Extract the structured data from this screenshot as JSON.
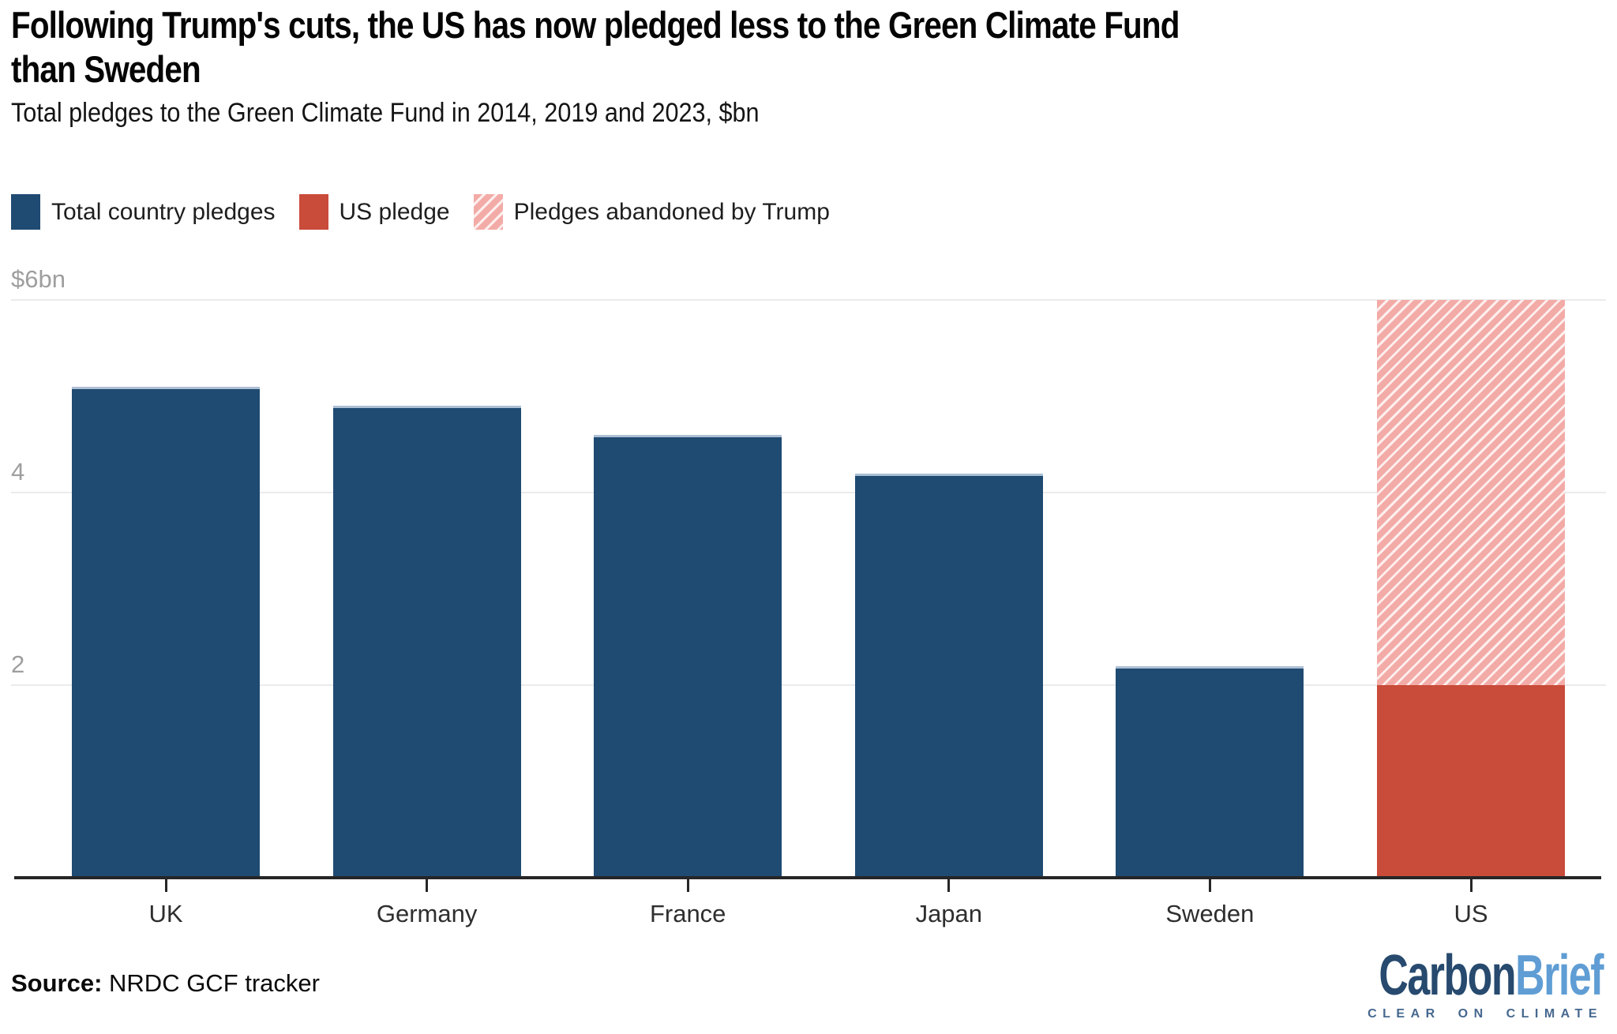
{
  "header": {
    "title": "Following Trump's cuts, the US has now pledged less to the Green Climate Fund than Sweden",
    "title_lines": [
      "Following Trump's cuts, the US has now pledged less to the Green Climate Fund",
      "than Sweden"
    ],
    "subtitle": "Total pledges to the Green Climate Fund in 2014, 2019 and 2023, $bn"
  },
  "legend": {
    "items": [
      {
        "label": "Total country pledges",
        "color": "#1f4a72",
        "pattern": "solid"
      },
      {
        "label": "US pledge",
        "color": "#c94b3a",
        "pattern": "solid"
      },
      {
        "label": "Pledges abandoned by Trump",
        "color": "#f3aba7",
        "pattern": "hatched"
      }
    ]
  },
  "chart_data": {
    "type": "bar",
    "title": "Following Trump's cuts, the US has now pledged less to the Green Climate Fund than Sweden",
    "subtitle": "Total pledges to the Green Climate Fund in 2014, 2019 and 2023, $bn",
    "unit": "$bn",
    "categories": [
      "UK",
      "Germany",
      "France",
      "Japan",
      "Sweden",
      "US"
    ],
    "series": [
      {
        "name": "Total country pledges",
        "color": "#1f4a72",
        "hatch": false,
        "top_edge": true,
        "values": [
          5.1,
          4.9,
          4.6,
          4.2,
          2.2,
          null
        ]
      },
      {
        "name": "US pledge",
        "color": "#c94b3a",
        "hatch": false,
        "top_edge": false,
        "values": [
          null,
          null,
          null,
          null,
          null,
          2.0
        ]
      },
      {
        "name": "Pledges abandoned by Trump",
        "color": "#f3aba7",
        "hatch": true,
        "top_edge": false,
        "values": [
          null,
          null,
          null,
          null,
          null,
          4.0
        ]
      }
    ],
    "stacked": true,
    "ylim": [
      0,
      6
    ],
    "yticks": [
      {
        "value": 6,
        "label": "$6bn"
      },
      {
        "value": 4,
        "label": "4"
      },
      {
        "value": 2,
        "label": "2"
      }
    ],
    "grid": "horizontal",
    "legend_position": "top",
    "colors": {
      "hatch_line": "#fcefee",
      "bar_top_edge": "#adc0d4",
      "gridline": "#ebebeb",
      "axis": "#262626",
      "ytick_text": "#9e9e9e",
      "xtick_text": "#2e2e2e"
    }
  },
  "footer": {
    "source_label": "Source:",
    "source_text": " NRDC GCF tracker",
    "logo": {
      "part1": "Carbon",
      "part2": "Brief",
      "tagline": "CLEAR ON CLIMATE",
      "part1_color": "#274a6e",
      "part2_color": "#5f9dd4"
    }
  }
}
